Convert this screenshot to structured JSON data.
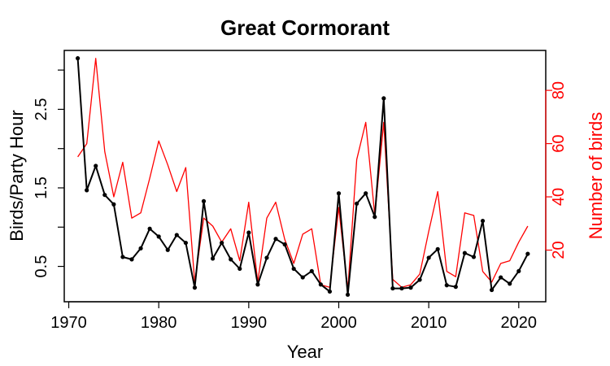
{
  "chart_data": {
    "type": "line",
    "title": "Great Cormorant",
    "xlabel": "Year",
    "ylabel_left": "Birds/Party Hour",
    "ylabel_right": "Number of birds",
    "xlim": [
      1969.5,
      2023
    ],
    "ylim_left": [
      0.05,
      3.25
    ],
    "ylim_right": [
      0.6,
      95
    ],
    "x_ticks": [
      1970,
      1980,
      1990,
      2000,
      2010,
      2020
    ],
    "y_ticks_left": [
      0.5,
      1.5,
      2.5
    ],
    "y_ticks_left_minor": [
      1.0,
      2.0,
      3.0
    ],
    "y_ticks_right": [
      20,
      40,
      60,
      80
    ],
    "grid": false,
    "legend": "none",
    "colors": {
      "left_series": "#000000",
      "right_series": "#ff0000"
    },
    "x": [
      1971,
      1972,
      1973,
      1974,
      1975,
      1976,
      1977,
      1978,
      1979,
      1980,
      1981,
      1982,
      1983,
      1984,
      1985,
      1986,
      1987,
      1988,
      1989,
      1990,
      1991,
      1992,
      1993,
      1994,
      1995,
      1996,
      1997,
      1998,
      1999,
      2000,
      2001,
      2002,
      2003,
      2004,
      2005,
      2006,
      2007,
      2008,
      2009,
      2010,
      2011,
      2012,
      2013,
      2014,
      2015,
      2016,
      2017,
      2018,
      2019,
      2020,
      2021
    ],
    "series": [
      {
        "axis": "left",
        "values": [
          3.15,
          1.47,
          1.78,
          1.41,
          1.29,
          0.62,
          0.59,
          0.73,
          0.98,
          0.88,
          0.71,
          0.9,
          0.8,
          0.23,
          1.33,
          0.6,
          0.8,
          0.59,
          0.47,
          0.93,
          0.27,
          0.61,
          0.85,
          0.78,
          0.47,
          0.36,
          0.44,
          0.27,
          0.18,
          1.43,
          0.14,
          1.3,
          1.43,
          1.13,
          2.64,
          0.22,
          0.22,
          0.23,
          0.33,
          0.61,
          0.72,
          0.26,
          0.24,
          0.67,
          0.62,
          1.08,
          0.2,
          0.36,
          0.28,
          0.44,
          0.66
        ]
      },
      {
        "axis": "right",
        "values": [
          55,
          60,
          92,
          57,
          40,
          53,
          32,
          34,
          47,
          61,
          52,
          42,
          51,
          8,
          32,
          29,
          23,
          28,
          16,
          38,
          8,
          32,
          38,
          24,
          15,
          26,
          28,
          7,
          6,
          36,
          5,
          54,
          68,
          33,
          68,
          9,
          6,
          7,
          11,
          27,
          42,
          12,
          10,
          34,
          33,
          12,
          8,
          15,
          16,
          23,
          29
        ]
      }
    ]
  }
}
